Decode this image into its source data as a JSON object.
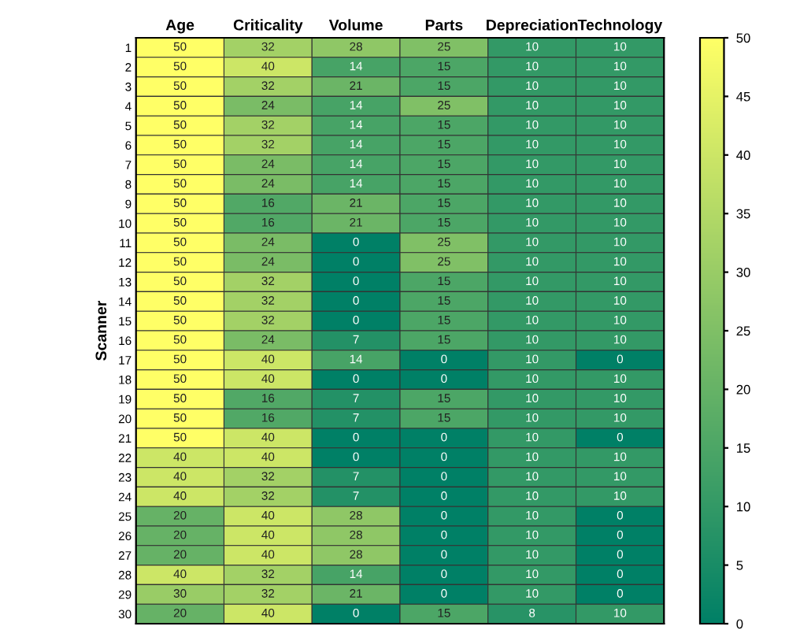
{
  "chart_data": {
    "type": "heatmap",
    "ylabel": "Scanner",
    "categories": [
      "Age",
      "Criticality",
      "Volume",
      "Parts",
      "Depreciation",
      "Technology"
    ],
    "y_categories": [
      "1",
      "2",
      "3",
      "4",
      "5",
      "6",
      "7",
      "8",
      "9",
      "10",
      "11",
      "12",
      "13",
      "14",
      "15",
      "16",
      "17",
      "18",
      "19",
      "20",
      "21",
      "22",
      "23",
      "24",
      "25",
      "26",
      "27",
      "28",
      "29",
      "30"
    ],
    "cells": [
      [
        50,
        32,
        28,
        25,
        10,
        10
      ],
      [
        50,
        40,
        14,
        15,
        10,
        10
      ],
      [
        50,
        32,
        21,
        15,
        10,
        10
      ],
      [
        50,
        24,
        14,
        25,
        10,
        10
      ],
      [
        50,
        32,
        14,
        15,
        10,
        10
      ],
      [
        50,
        32,
        14,
        15,
        10,
        10
      ],
      [
        50,
        24,
        14,
        15,
        10,
        10
      ],
      [
        50,
        24,
        14,
        15,
        10,
        10
      ],
      [
        50,
        16,
        21,
        15,
        10,
        10
      ],
      [
        50,
        16,
        21,
        15,
        10,
        10
      ],
      [
        50,
        24,
        0,
        25,
        10,
        10
      ],
      [
        50,
        24,
        0,
        25,
        10,
        10
      ],
      [
        50,
        32,
        0,
        15,
        10,
        10
      ],
      [
        50,
        32,
        0,
        15,
        10,
        10
      ],
      [
        50,
        32,
        0,
        15,
        10,
        10
      ],
      [
        50,
        24,
        7,
        15,
        10,
        10
      ],
      [
        50,
        40,
        14,
        0,
        10,
        0
      ],
      [
        50,
        40,
        0,
        0,
        10,
        10
      ],
      [
        50,
        16,
        7,
        15,
        10,
        10
      ],
      [
        50,
        16,
        7,
        15,
        10,
        10
      ],
      [
        50,
        40,
        0,
        0,
        10,
        0
      ],
      [
        40,
        40,
        0,
        0,
        10,
        10
      ],
      [
        40,
        32,
        7,
        0,
        10,
        10
      ],
      [
        40,
        32,
        7,
        0,
        10,
        10
      ],
      [
        20,
        40,
        28,
        0,
        10,
        0
      ],
      [
        20,
        40,
        28,
        0,
        10,
        0
      ],
      [
        20,
        40,
        28,
        0,
        10,
        0
      ],
      [
        40,
        32,
        14,
        0,
        10,
        0
      ],
      [
        30,
        32,
        21,
        0,
        10,
        0
      ],
      [
        20,
        40,
        0,
        15,
        8,
        10
      ]
    ],
    "data_labels": true,
    "clim": [
      0,
      50
    ],
    "cticks": [
      0,
      5,
      10,
      15,
      20,
      25,
      30,
      35,
      40,
      45,
      50
    ]
  }
}
